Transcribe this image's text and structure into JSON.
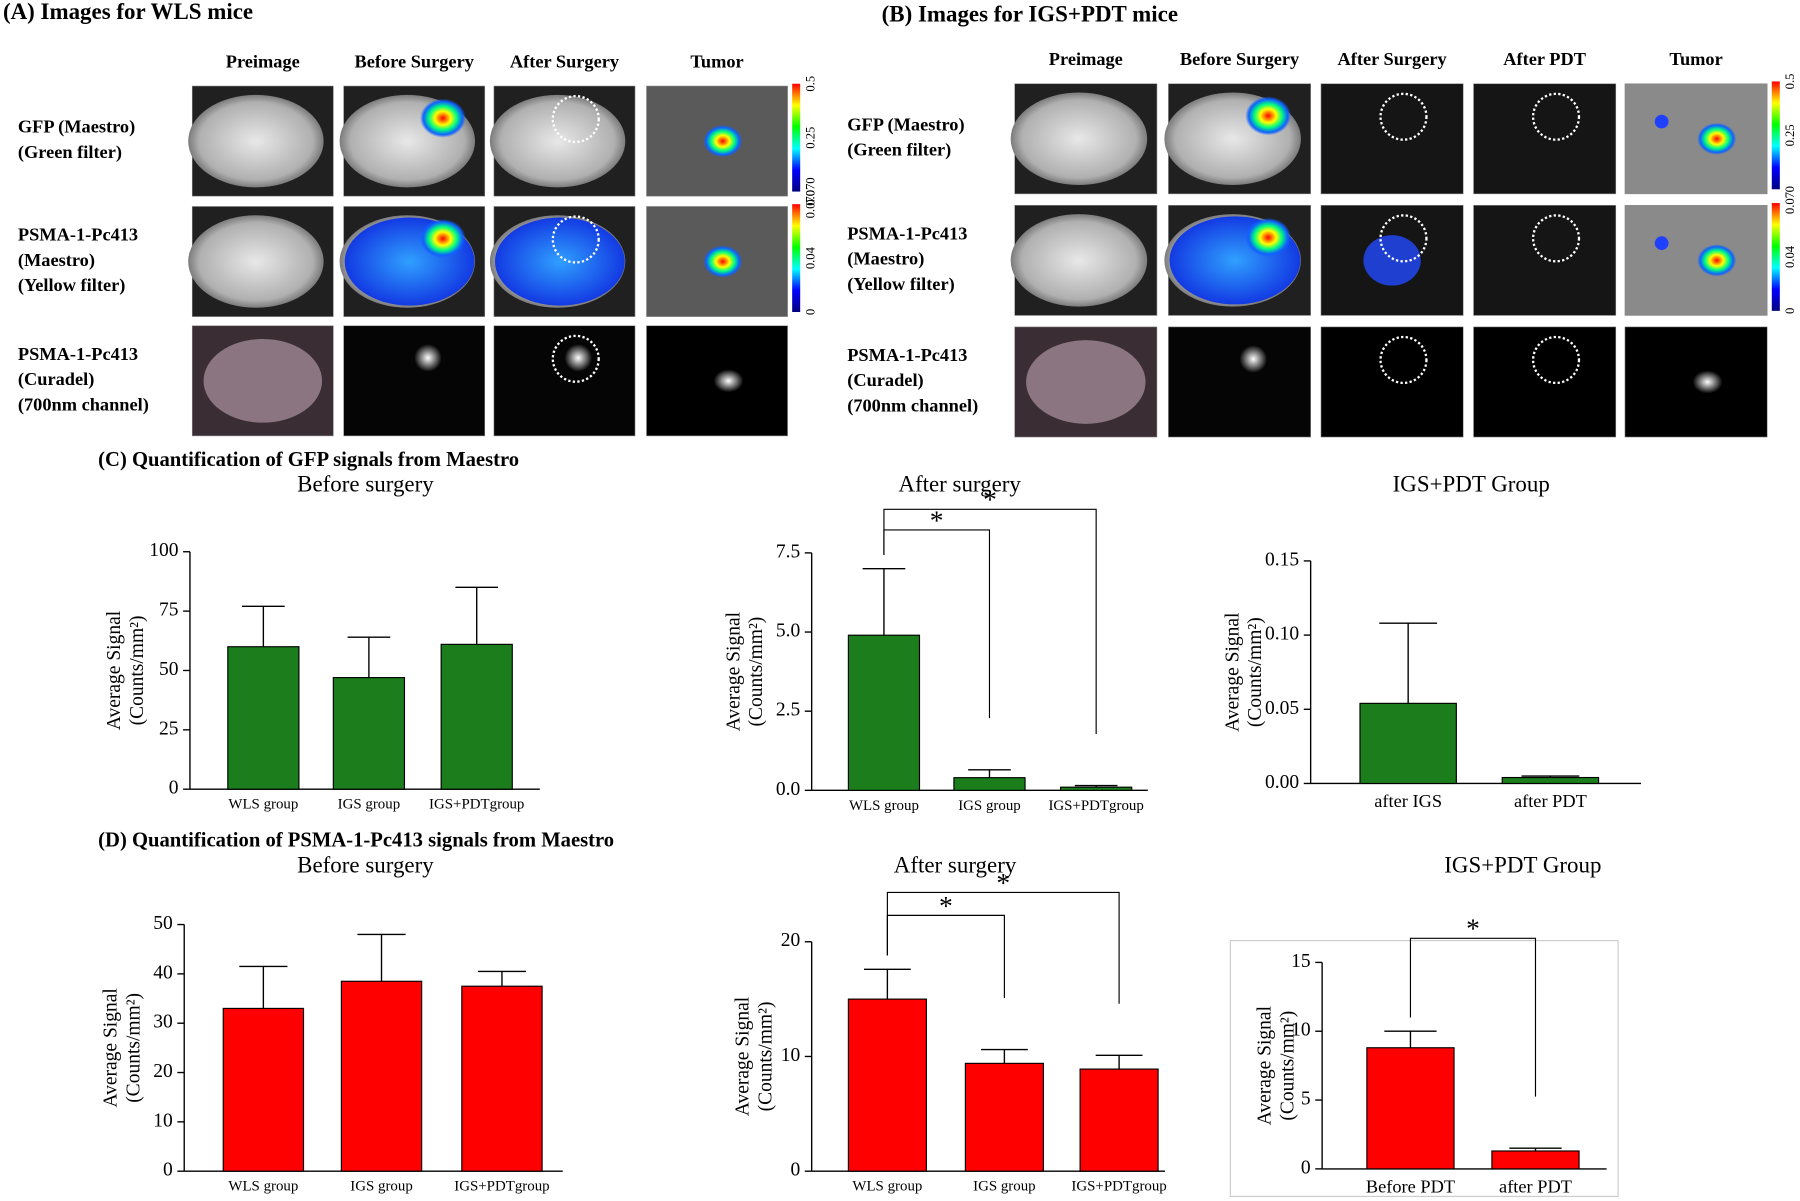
{
  "figure": {
    "panel_a": {
      "title": "(A) Images for WLS mice",
      "columns": [
        "Preimage",
        "Before Surgery",
        "After Surgery",
        "Tumor"
      ],
      "rows": [
        [
          "GFP (Maestro)",
          "(Green filter)"
        ],
        [
          "PSMA-1-Pc413",
          "(Maestro)",
          "(Yellow filter)"
        ],
        [
          "PSMA-1-Pc413",
          "(Curadel)",
          "(700nm channel)"
        ]
      ],
      "colorbars": [
        [
          "0.5",
          "0.25",
          "0.070"
        ],
        [
          "0.070",
          "0.04",
          "0"
        ]
      ]
    },
    "panel_b": {
      "title": "(B) Images for IGS+PDT mice",
      "columns": [
        "Preimage",
        "Before Surgery",
        "After Surgery",
        "After PDT",
        "Tumor"
      ],
      "rows": [
        [
          "GFP (Maestro)",
          "(Green filter)"
        ],
        [
          "PSMA-1-Pc413",
          "(Maestro)",
          "(Yellow filter)"
        ],
        [
          "PSMA-1-Pc413",
          "(Curadel)",
          "(700nm channel)"
        ]
      ],
      "colorbars": [
        [
          "0.5",
          "0.25",
          "0"
        ],
        [
          "0.07",
          "0.04",
          "0"
        ]
      ]
    },
    "section_c": "(C) Quantification of GFP signals from Maestro",
    "section_d": "(D) Quantification of PSMA-1-Pc413 signals from Maestro"
  },
  "chart_data": [
    {
      "type": "bar",
      "title": "Before surgery",
      "y_label": [
        "Average Signal",
        "(Counts/mm²)"
      ],
      "categories": [
        "WLS group",
        "IGS group",
        "IGS+PDTgroup"
      ],
      "values": [
        60,
        47,
        61
      ],
      "errors": [
        17,
        17,
        24
      ],
      "color": "#1b7d1b",
      "ylim": [
        0,
        100
      ],
      "yticks": [
        0,
        25,
        50,
        75,
        100
      ]
    },
    {
      "type": "bar",
      "title": "After surgery",
      "y_label": [
        "Average Signal",
        "(Counts/mm²)"
      ],
      "categories": [
        "WLS group",
        "IGS group",
        "IGS+PDTgroup"
      ],
      "values": [
        4.9,
        0.4,
        0.1
      ],
      "errors": [
        2.1,
        0.25,
        0.05
      ],
      "color": "#1b7d1b",
      "ylim": [
        0,
        7.5
      ],
      "yticks": [
        {
          "value": 0,
          "label": "0.0"
        },
        2.5,
        {
          "value": 5,
          "label": "5.0"
        },
        7.5
      ],
      "annotations": [
        {
          "text": "*",
          "between": [
            0,
            1
          ]
        },
        {
          "text": "*",
          "between": [
            0,
            2
          ]
        }
      ]
    },
    {
      "type": "bar",
      "title": "IGS+PDT Group",
      "y_label": [
        "Average Signal",
        "(Counts/mm²)"
      ],
      "categories": [
        "after IGS",
        "after PDT"
      ],
      "values": [
        0.054,
        0.004
      ],
      "errors": [
        0.054,
        0.001
      ],
      "color": "#1b7d1b",
      "ylim": [
        0,
        0.15
      ],
      "yticks": [
        {
          "value": 0,
          "label": "0.00"
        },
        0.05,
        {
          "value": 0.1,
          "label": "0.10"
        },
        0.15
      ]
    },
    {
      "type": "bar",
      "title": "Before surgery",
      "y_label": [
        "Average Signal",
        "(Counts/mm²)"
      ],
      "categories": [
        "WLS group",
        "IGS group",
        "IGS+PDTgroup"
      ],
      "values": [
        33,
        38.5,
        37.5
      ],
      "errors": [
        8.5,
        9.5,
        3
      ],
      "color": "#ff0000",
      "ylim": [
        0,
        50
      ],
      "yticks": [
        0,
        10,
        20,
        30,
        40,
        50
      ]
    },
    {
      "type": "bar",
      "title": "After surgery",
      "y_label": [
        "Average Signal",
        "(Counts/mm²)"
      ],
      "categories": [
        "WLS group",
        "IGS group",
        "IGS+PDTgroup"
      ],
      "values": [
        15,
        9.4,
        8.9
      ],
      "errors": [
        2.6,
        1.2,
        1.2
      ],
      "color": "#ff0000",
      "ylim": [
        0,
        20
      ],
      "yticks": [
        0,
        10,
        20
      ],
      "annotations": [
        {
          "text": "*",
          "between": [
            0,
            1
          ]
        },
        {
          "text": "*",
          "between": [
            0,
            2
          ]
        }
      ]
    },
    {
      "type": "bar",
      "title": "IGS+PDT Group",
      "y_label": [
        "Average Signal",
        "(Counts/mm²)"
      ],
      "categories": [
        "Before PDT",
        "after PDT"
      ],
      "values": [
        8.8,
        1.3
      ],
      "errors": [
        1.2,
        0.2
      ],
      "color": "#ff0000",
      "ylim": [
        0,
        15
      ],
      "yticks": [
        0,
        5,
        10,
        15
      ],
      "frame": true,
      "annotations": [
        {
          "text": "*",
          "between": [
            0,
            1
          ]
        }
      ]
    }
  ]
}
